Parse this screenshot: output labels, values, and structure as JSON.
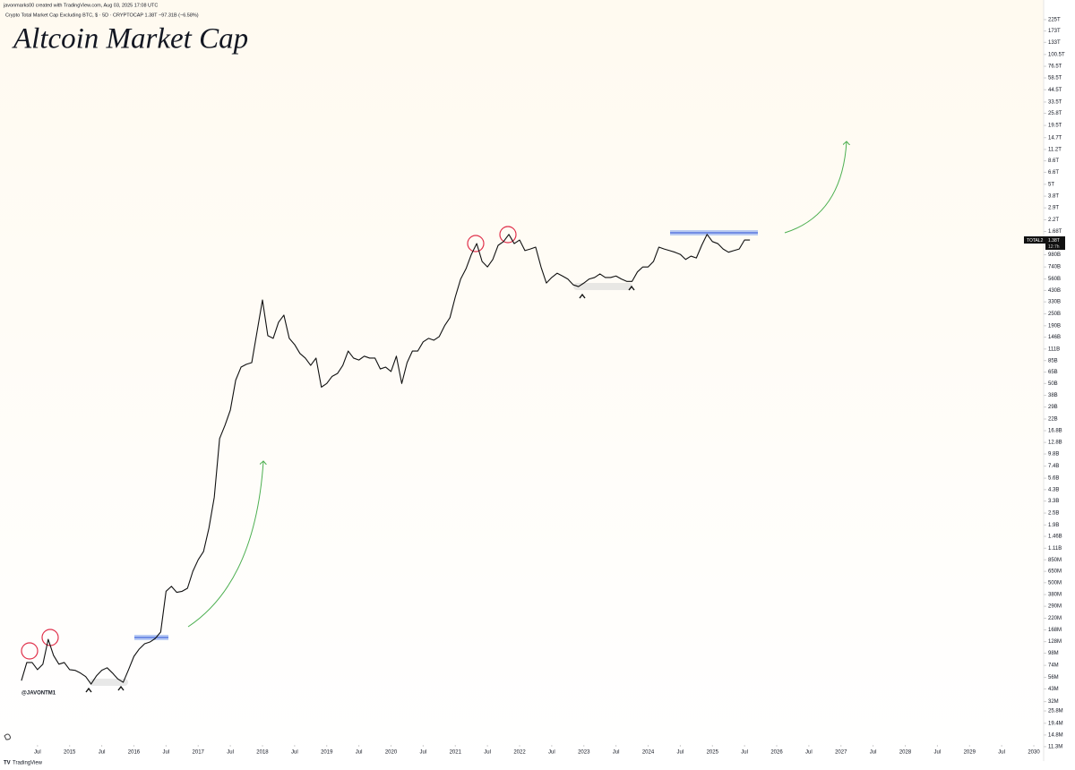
{
  "chart_data": {
    "type": "line",
    "title": "Altcoin Market Cap",
    "source_note": "javonmarks00 created with TradingView.com, Aug 03, 2025 17:08 UTC",
    "subtitle": "Crypto Total Market Cap Excluding BTC, $ · 5D · CRYPTOCAP  1.38T  −97.31B (−6.58%)",
    "watermark": "@JAVONTM1",
    "color": "#111111",
    "log_scale": true,
    "grid": false,
    "x": [
      "2014-04",
      "2014-05",
      "2014-06",
      "2014-07",
      "2014-08",
      "2014-09",
      "2014-10",
      "2014-11",
      "2014-12",
      "2015-01",
      "2015-02",
      "2015-03",
      "2015-04",
      "2015-05",
      "2015-06",
      "2015-07",
      "2015-08",
      "2015-09",
      "2015-10",
      "2015-11",
      "2015-12",
      "2016-01",
      "2016-02",
      "2016-03",
      "2016-04",
      "2016-05",
      "2016-06",
      "2016-07",
      "2016-08",
      "2016-09",
      "2016-10",
      "2016-11",
      "2016-12",
      "2017-01",
      "2017-02",
      "2017-03",
      "2017-04",
      "2017-05",
      "2017-06",
      "2017-07",
      "2017-08",
      "2017-09",
      "2017-10",
      "2017-11",
      "2017-12",
      "2018-01",
      "2018-02",
      "2018-03",
      "2018-04",
      "2018-05",
      "2018-06",
      "2018-07",
      "2018-08",
      "2018-09",
      "2018-10",
      "2018-11",
      "2018-12",
      "2019-01",
      "2019-02",
      "2019-03",
      "2019-04",
      "2019-05",
      "2019-06",
      "2019-07",
      "2019-08",
      "2019-09",
      "2019-10",
      "2019-11",
      "2019-12",
      "2020-01",
      "2020-02",
      "2020-03",
      "2020-04",
      "2020-05",
      "2020-06",
      "2020-07",
      "2020-08",
      "2020-09",
      "2020-10",
      "2020-11",
      "2020-12",
      "2021-01",
      "2021-02",
      "2021-03",
      "2021-04",
      "2021-05",
      "2021-06",
      "2021-07",
      "2021-08",
      "2021-09",
      "2021-10",
      "2021-11",
      "2021-12",
      "2022-01",
      "2022-02",
      "2022-03",
      "2022-04",
      "2022-05",
      "2022-06",
      "2022-07",
      "2022-08",
      "2022-09",
      "2022-10",
      "2022-11",
      "2022-12",
      "2023-01",
      "2023-02",
      "2023-03",
      "2023-04",
      "2023-05",
      "2023-06",
      "2023-07",
      "2023-08",
      "2023-09",
      "2023-10",
      "2023-11",
      "2023-12",
      "2024-01",
      "2024-02",
      "2024-03",
      "2024-04",
      "2024-05",
      "2024-06",
      "2024-07",
      "2024-08",
      "2024-09",
      "2024-10",
      "2024-11",
      "2024-12",
      "2025-01",
      "2025-02",
      "2025-03",
      "2025-04",
      "2025-05",
      "2025-06",
      "2025-07",
      "2025-08"
    ],
    "values": [
      52000000.0,
      79000000.0,
      79000000.0,
      67000000.0,
      76000000.0,
      135000000.0,
      93000000.0,
      76000000.0,
      79000000.0,
      67000000.0,
      66000000.0,
      62000000.0,
      57000000.0,
      48000000.0,
      58000000.0,
      66000000.0,
      70000000.0,
      62000000.0,
      54000000.0,
      50000000.0,
      67000000.0,
      91000000.0,
      108000000.0,
      122000000.0,
      127000000.0,
      138000000.0,
      160000000.0,
      410000000.0,
      460000000.0,
      400000000.0,
      410000000.0,
      440000000.0,
      650000000.0,
      850000000.0,
      1030000000.0,
      1760000000.0,
      3600000000.0,
      14000000000.0,
      19000000000.0,
      27000000000.0,
      54000000000.0,
      73000000000.0,
      78000000000.0,
      81000000000.0,
      167000000000.0,
      345000000000.0,
      151000000000.0,
      142000000000.0,
      206000000000.0,
      243000000000.0,
      142000000000.0,
      123000000000.0,
      100000000000.0,
      90000000000.0,
      76000000000.0,
      90000000000.0,
      46000000000.0,
      50000000000.0,
      59000000000.0,
      63000000000.0,
      76000000000.0,
      106000000000.0,
      90000000000.0,
      86000000000.0,
      94000000000.0,
      90000000000.0,
      90000000000.0,
      70000000000.0,
      73000000000.0,
      66000000000.0,
      94000000000.0,
      50000000000.0,
      81000000000.0,
      106000000000.0,
      106000000000.0,
      131000000000.0,
      142000000000.0,
      136000000000.0,
      148000000000.0,
      190000000000.0,
      229000000000.0,
      370000000000.0,
      560000000000.0,
      710000000000.0,
      990000000000.0,
      1270000000000.0,
      840000000000.0,
      740000000000.0,
      880000000000.0,
      1220000000000.0,
      1330000000000.0,
      1570000000000.0,
      1270000000000.0,
      1380000000000.0,
      1080000000000.0,
      1120000000000.0,
      1170000000000.0,
      740000000000.0,
      510000000000.0,
      580000000000.0,
      640000000000.0,
      600000000000.0,
      560000000000.0,
      490000000000.0,
      470000000000.0,
      510000000000.0,
      560000000000.0,
      580000000000.0,
      630000000000.0,
      580000000000.0,
      580000000000.0,
      600000000000.0,
      560000000000.0,
      530000000000.0,
      530000000000.0,
      660000000000.0,
      740000000000.0,
      740000000000.0,
      840000000000.0,
      1170000000000.0,
      1120000000000.0,
      1080000000000.0,
      1040000000000.0,
      990000000000.0,
      880000000000.0,
      950000000000.0,
      910000000000.0,
      1220000000000.0,
      1570000000000.0,
      1330000000000.0,
      1270000000000.0,
      1120000000000.0,
      1040000000000.0,
      1080000000000.0,
      1120000000000.0,
      1380000000000.0,
      1380000000000.0
    ],
    "last_tag": {
      "symbol": "TOTAL2",
      "label": "1.38T",
      "countdown": "12:7h"
    },
    "xlim": [
      "2013-12",
      "2030-02"
    ],
    "xticks": [
      {
        "value": "2014-07",
        "label": "Jul"
      },
      {
        "value": "2015-01",
        "label": "2015"
      },
      {
        "value": "2015-07",
        "label": "Jul"
      },
      {
        "value": "2016-01",
        "label": "2016"
      },
      {
        "value": "2016-07",
        "label": "Jul"
      },
      {
        "value": "2017-01",
        "label": "2017"
      },
      {
        "value": "2017-07",
        "label": "Jul"
      },
      {
        "value": "2018-01",
        "label": "2018"
      },
      {
        "value": "2018-07",
        "label": "Jul"
      },
      {
        "value": "2019-01",
        "label": "2019"
      },
      {
        "value": "2019-07",
        "label": "Jul"
      },
      {
        "value": "2020-01",
        "label": "2020"
      },
      {
        "value": "2020-07",
        "label": "Jul"
      },
      {
        "value": "2021-01",
        "label": "2021"
      },
      {
        "value": "2021-07",
        "label": "Jul"
      },
      {
        "value": "2022-01",
        "label": "2022"
      },
      {
        "value": "2022-07",
        "label": "Jul"
      },
      {
        "value": "2023-01",
        "label": "2023"
      },
      {
        "value": "2023-07",
        "label": "Jul"
      },
      {
        "value": "2024-01",
        "label": "2024"
      },
      {
        "value": "2024-07",
        "label": "Jul"
      },
      {
        "value": "2025-01",
        "label": "2025"
      },
      {
        "value": "2025-07",
        "label": "Jul"
      },
      {
        "value": "2026-01",
        "label": "2026"
      },
      {
        "value": "2026-07",
        "label": "Jul"
      },
      {
        "value": "2027-01",
        "label": "2027"
      },
      {
        "value": "2027-07",
        "label": "Jul"
      },
      {
        "value": "2028-01",
        "label": "2028"
      },
      {
        "value": "2028-07",
        "label": "Jul"
      },
      {
        "value": "2029-01",
        "label": "2029"
      },
      {
        "value": "2029-07",
        "label": "Jul"
      },
      {
        "value": "2030-01",
        "label": "2030"
      }
    ],
    "ylim": [
      8100000.0,
      288000000000000.0
    ],
    "yticks": [
      {
        "value": 225000000000000.0,
        "label": "225T"
      },
      {
        "value": 173000000000000.0,
        "label": "173T"
      },
      {
        "value": 133000000000000.0,
        "label": "133T"
      },
      {
        "value": 100500000000000.0,
        "label": "100.5T"
      },
      {
        "value": 76500000000000.0,
        "label": "76.5T"
      },
      {
        "value": 58500000000000.0,
        "label": "58.5T"
      },
      {
        "value": 44500000000000.0,
        "label": "44.5T"
      },
      {
        "value": 33500000000000.0,
        "label": "33.5T"
      },
      {
        "value": 25800000000000.0,
        "label": "25.8T"
      },
      {
        "value": 19500000000000.0,
        "label": "19.5T"
      },
      {
        "value": 14700000000000.0,
        "label": "14.7T"
      },
      {
        "value": 11200000000000.0,
        "label": "11.2T"
      },
      {
        "value": 8600000000000.0,
        "label": "8.6T"
      },
      {
        "value": 6600000000000.0,
        "label": "6.6T"
      },
      {
        "value": 5000000000000.0,
        "label": "5T"
      },
      {
        "value": 3800000000000.0,
        "label": "3.8T"
      },
      {
        "value": 2900000000000.0,
        "label": "2.9T"
      },
      {
        "value": 2200000000000.0,
        "label": "2.2T"
      },
      {
        "value": 1680000000000.0,
        "label": "1.68T"
      },
      {
        "value": 980000000000.0,
        "label": "980B"
      },
      {
        "value": 740000000000.0,
        "label": "740B"
      },
      {
        "value": 560000000000.0,
        "label": "560B"
      },
      {
        "value": 430000000000.0,
        "label": "430B"
      },
      {
        "value": 330000000000.0,
        "label": "330B"
      },
      {
        "value": 250000000000.0,
        "label": "250B"
      },
      {
        "value": 190000000000.0,
        "label": "190B"
      },
      {
        "value": 146000000000.0,
        "label": "146B"
      },
      {
        "value": 111000000000.0,
        "label": "111B"
      },
      {
        "value": 85000000000.0,
        "label": "85B"
      },
      {
        "value": 65000000000.0,
        "label": "65B"
      },
      {
        "value": 50000000000.0,
        "label": "50B"
      },
      {
        "value": 38000000000.0,
        "label": "38B"
      },
      {
        "value": 29000000000.0,
        "label": "29B"
      },
      {
        "value": 22000000000.0,
        "label": "22B"
      },
      {
        "value": 16800000000.0,
        "label": "16.8B"
      },
      {
        "value": 12800000000.0,
        "label": "12.8B"
      },
      {
        "value": 9800000000.0,
        "label": "9.8B"
      },
      {
        "value": 7400000000.0,
        "label": "7.4B"
      },
      {
        "value": 5600000000.0,
        "label": "5.6B"
      },
      {
        "value": 4300000000.0,
        "label": "4.3B"
      },
      {
        "value": 3300000000.0,
        "label": "3.3B"
      },
      {
        "value": 2500000000.0,
        "label": "2.5B"
      },
      {
        "value": 1900000000.0,
        "label": "1.9B"
      },
      {
        "value": 1460000000.0,
        "label": "1.46B"
      },
      {
        "value": 1110000000.0,
        "label": "1.11B"
      },
      {
        "value": 850000000.0,
        "label": "850M"
      },
      {
        "value": 650000000.0,
        "label": "650M"
      },
      {
        "value": 500000000.0,
        "label": "500M"
      },
      {
        "value": 380000000.0,
        "label": "380M"
      },
      {
        "value": 290000000.0,
        "label": "290M"
      },
      {
        "value": 220000000.0,
        "label": "220M"
      },
      {
        "value": 168000000.0,
        "label": "168M"
      },
      {
        "value": 128000000.0,
        "label": "128M"
      },
      {
        "value": 98000000.0,
        "label": "98M"
      },
      {
        "value": 74000000.0,
        "label": "74M"
      },
      {
        "value": 56000000.0,
        "label": "56M"
      },
      {
        "value": 43000000.0,
        "label": "43M"
      },
      {
        "value": 32000000.0,
        "label": "32M"
      },
      {
        "value": 25800000.0,
        "label": "25.8M"
      },
      {
        "value": 19400000.0,
        "label": "19.4M"
      },
      {
        "value": 14800000.0,
        "label": "14.8M"
      },
      {
        "value": 11300000.0,
        "label": "11.3M"
      }
    ]
  },
  "footer": {
    "brand": "TradingView"
  }
}
